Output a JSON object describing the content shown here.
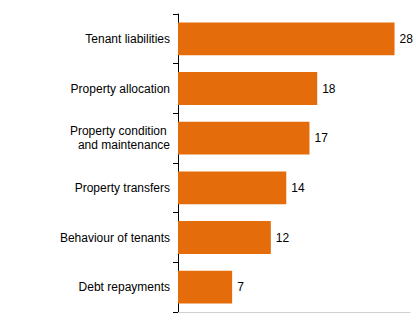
{
  "chart_data": {
    "type": "bar",
    "orientation": "horizontal",
    "categories": [
      "Tenant liabilities",
      "Property allocation",
      "Property condition and maintenance",
      "Property transfers",
      "Behaviour of tenants",
      "Debt repayments"
    ],
    "values": [
      28,
      18,
      17,
      14,
      12,
      7
    ],
    "color": "#e46c0a",
    "xlim": [
      0,
      30
    ],
    "data_labels": true,
    "tick_labels": "y",
    "grid": false
  }
}
